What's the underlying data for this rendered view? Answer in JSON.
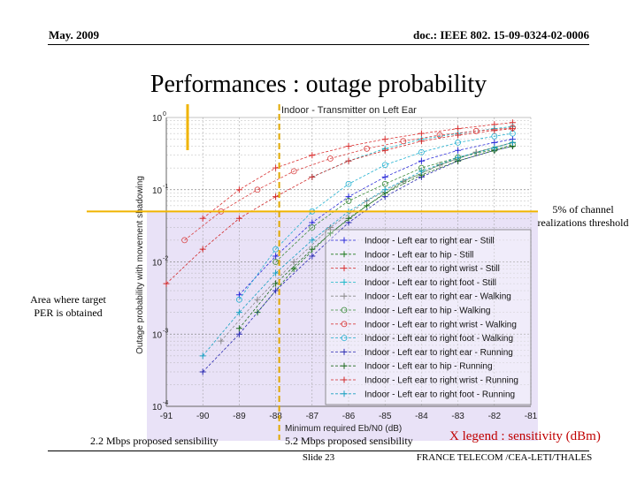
{
  "header": {
    "date": "May. 2009",
    "doc_id": "doc.: IEEE 802. 15-09-0324-02-0006"
  },
  "slide": {
    "title": "Performances : outage probability"
  },
  "annotations": {
    "threshold_note": [
      "5% of channel",
      "realizations threshold"
    ],
    "area_note": [
      "Area where target",
      "PER is obtained"
    ],
    "sens_22": "2.2 Mbps proposed sensibility",
    "sens_52": "5.2 Mbps proposed sensibility",
    "x_legend": "X legend : sensitivity (dBm)"
  },
  "footer": {
    "slide_no": "Slide 23",
    "company": "FRANCE TELECOM /CEA-LETI/THALES"
  },
  "colors": {
    "highlight_area": "#e9e2f7",
    "threshold_line": "#f0b400",
    "proposed_sensibility_line": "#e0a800",
    "x_legend_text": "#c00000"
  },
  "chart_data": {
    "type": "line",
    "title": "Indoor - Transmitter on Left Ear",
    "xlabel": "Minimum required Eb/N0 (dB)",
    "ylabel": "Outage probability with movement shadowing",
    "yscale": "log",
    "xlim": [
      -91,
      -81
    ],
    "ylim": [
      0.0001,
      1
    ],
    "x_ticks": [
      "-91",
      "-90",
      "-89",
      "-88",
      "-87",
      "-86",
      "-85",
      "-84",
      "-83",
      "-82",
      "-81"
    ],
    "y_ticks": [
      {
        "base": "10",
        "exp": "0",
        "value": 1
      },
      {
        "base": "10",
        "exp": "-1",
        "value": 0.1
      },
      {
        "base": "10",
        "exp": "-2",
        "value": 0.01
      },
      {
        "base": "10",
        "exp": "-3",
        "value": 0.001
      },
      {
        "base": "10",
        "exp": "-4",
        "value": 0.0001
      }
    ],
    "threshold": 0.05,
    "proposed_sensibility_x": [
      -91,
      -88
    ],
    "grid": true,
    "legend_position": "center-right",
    "series": [
      {
        "name": "Indoor - Left ear to right ear - Still",
        "color": "#2a2ad8",
        "marker": "plus",
        "x": [
          -89,
          -88,
          -87,
          -86,
          -85,
          -84,
          -83,
          -82,
          -81.5
        ],
        "y": [
          0.0035,
          0.012,
          0.035,
          0.08,
          0.15,
          0.25,
          0.35,
          0.45,
          0.5
        ]
      },
      {
        "name": "Indoor - Left ear to hip - Still",
        "color": "#1f7a1f",
        "marker": "plus",
        "x": [
          -88.5,
          -87.5,
          -86.5,
          -85.5,
          -84.5,
          -83.5,
          -82.5,
          -81.5
        ],
        "y": [
          0.002,
          0.008,
          0.025,
          0.06,
          0.13,
          0.22,
          0.33,
          0.45
        ]
      },
      {
        "name": "Indoor - Left ear to right wrist - Still",
        "color": "#d93030",
        "marker": "plus",
        "x": [
          -90,
          -89,
          -88,
          -87,
          -86,
          -85,
          -84,
          -83,
          -82,
          -81.5
        ],
        "y": [
          0.04,
          0.1,
          0.2,
          0.3,
          0.4,
          0.5,
          0.6,
          0.7,
          0.8,
          0.85
        ]
      },
      {
        "name": "Indoor - Left ear to right foot - Still",
        "color": "#18b8c8",
        "marker": "plus",
        "x": [
          -87,
          -86,
          -85,
          -84,
          -83,
          -82,
          -81.5
        ],
        "y": [
          0.15,
          0.25,
          0.37,
          0.5,
          0.6,
          0.7,
          0.75
        ]
      },
      {
        "name": "Indoor - Left ear to right ear - Walking",
        "color": "#8a8a8a",
        "marker": "plus",
        "x": [
          -89.5,
          -88.5,
          -87.5,
          -86.5,
          -85.5,
          -84.5,
          -83.5,
          -82.5,
          -81.5
        ],
        "y": [
          0.0008,
          0.003,
          0.01,
          0.03,
          0.07,
          0.13,
          0.22,
          0.33,
          0.45
        ]
      },
      {
        "name": "Indoor - Left ear to hip - Walking",
        "color": "#3a8a3a",
        "marker": "circle",
        "x": [
          -88,
          -87,
          -86,
          -85,
          -84,
          -83,
          -82,
          -81.5
        ],
        "y": [
          0.01,
          0.03,
          0.07,
          0.12,
          0.2,
          0.28,
          0.36,
          0.42
        ]
      },
      {
        "name": "Indoor - Left ear to right wrist - Walking",
        "color": "#d94040",
        "marker": "circle",
        "x": [
          -90.5,
          -89.5,
          -88.5,
          -87.5,
          -86.5,
          -85.5,
          -84.5,
          -83.5,
          -82.5,
          -81.5
        ],
        "y": [
          0.02,
          0.05,
          0.1,
          0.18,
          0.27,
          0.37,
          0.47,
          0.57,
          0.65,
          0.72
        ]
      },
      {
        "name": "Indoor - Left ear to right foot - Walking",
        "color": "#20b0d0",
        "marker": "circle",
        "x": [
          -89,
          -88,
          -87,
          -86,
          -85,
          -84,
          -83,
          -82,
          -81.5
        ],
        "y": [
          0.003,
          0.015,
          0.05,
          0.12,
          0.22,
          0.33,
          0.45,
          0.55,
          0.6
        ]
      },
      {
        "name": "Indoor - Left ear to right ear - Running",
        "color": "#2a2ab0",
        "marker": "plus",
        "x": [
          -90,
          -89,
          -88,
          -87,
          -86,
          -85,
          -84,
          -83,
          -82,
          -81.5
        ],
        "y": [
          0.0003,
          0.001,
          0.004,
          0.012,
          0.035,
          0.08,
          0.15,
          0.25,
          0.35,
          0.4
        ]
      },
      {
        "name": "Indoor - Left ear to hip - Running",
        "color": "#1f6a1f",
        "marker": "plus",
        "x": [
          -89,
          -88,
          -87,
          -86,
          -85,
          -84,
          -83,
          -82,
          -81.5
        ],
        "y": [
          0.0012,
          0.005,
          0.015,
          0.04,
          0.09,
          0.16,
          0.25,
          0.35,
          0.4
        ]
      },
      {
        "name": "Indoor - Left ear to right wrist - Running",
        "color": "#d02828",
        "marker": "plus",
        "x": [
          -91,
          -90,
          -89,
          -88,
          -87,
          -86,
          -85,
          -84,
          -83,
          -82,
          -81.5
        ],
        "y": [
          0.005,
          0.015,
          0.04,
          0.08,
          0.15,
          0.25,
          0.35,
          0.47,
          0.57,
          0.66,
          0.7
        ]
      },
      {
        "name": "Indoor - Left ear to right foot - Running",
        "color": "#18a0c0",
        "marker": "plus",
        "x": [
          -90,
          -89,
          -88,
          -87,
          -86,
          -85,
          -84,
          -83,
          -82,
          -81.5
        ],
        "y": [
          0.0005,
          0.002,
          0.007,
          0.02,
          0.05,
          0.1,
          0.18,
          0.28,
          0.38,
          0.45
        ]
      }
    ]
  }
}
